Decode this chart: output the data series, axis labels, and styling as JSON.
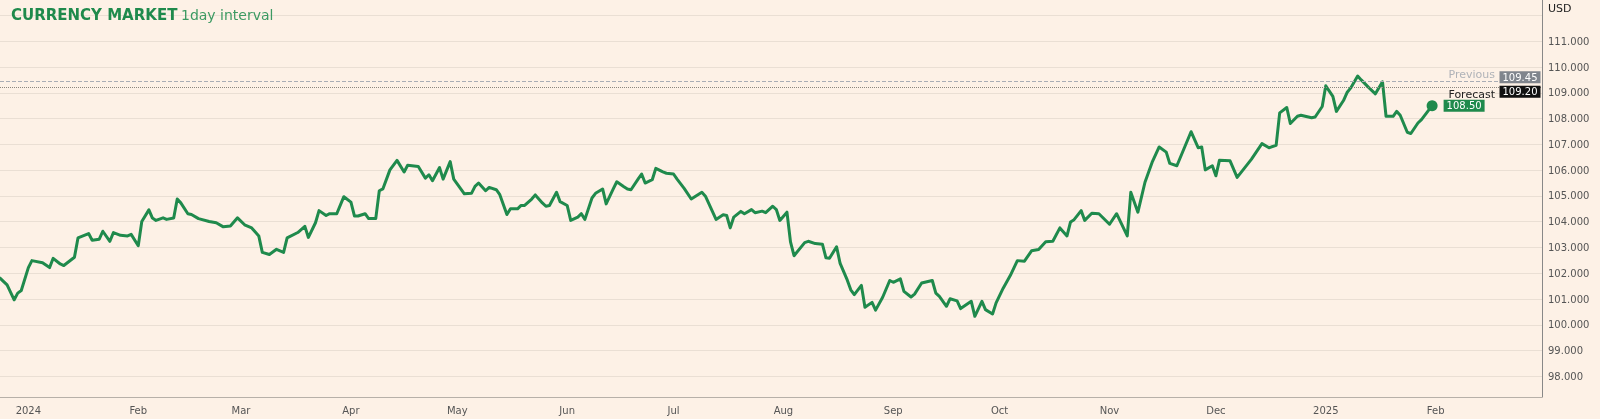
{
  "chart_data": {
    "type": "line",
    "title": "CURRENCY MARKET",
    "subtitle": "1day interval",
    "ylabel": "USD",
    "x": [
      "2023-12-24",
      "2023-12-26",
      "2023-12-28",
      "2023-12-29",
      "2023-12-30",
      "2024-01-01",
      "2024-01-02",
      "2024-01-05",
      "2024-01-07",
      "2024-01-08",
      "2024-01-10",
      "2024-01-11",
      "2024-01-14",
      "2024-01-15",
      "2024-01-18",
      "2024-01-19",
      "2024-01-21",
      "2024-01-22",
      "2024-01-24",
      "2024-01-25",
      "2024-01-27",
      "2024-01-29",
      "2024-01-30",
      "2024-02-01",
      "2024-02-02",
      "2024-02-04",
      "2024-02-05",
      "2024-02-06",
      "2024-02-08",
      "2024-02-09",
      "2024-02-11",
      "2024-02-12",
      "2024-02-13",
      "2024-02-15",
      "2024-02-16",
      "2024-02-18",
      "2024-02-21",
      "2024-02-23",
      "2024-02-25",
      "2024-02-27",
      "2024-02-29",
      "2024-03-02",
      "2024-03-04",
      "2024-03-06",
      "2024-03-07",
      "2024-03-09",
      "2024-03-11",
      "2024-03-13",
      "2024-03-14",
      "2024-03-17",
      "2024-03-19",
      "2024-03-20",
      "2024-03-22",
      "2024-03-23",
      "2024-03-25",
      "2024-03-26",
      "2024-03-28",
      "2024-03-30",
      "2024-04-01",
      "2024-04-02",
      "2024-04-03",
      "2024-04-05",
      "2024-04-06",
      "2024-04-08",
      "2024-04-09",
      "2024-04-10",
      "2024-04-12",
      "2024-04-14",
      "2024-04-16",
      "2024-04-17",
      "2024-04-20",
      "2024-04-22",
      "2024-04-23",
      "2024-04-24",
      "2024-04-26",
      "2024-04-27",
      "2024-04-29",
      "2024-04-30",
      "2024-05-03",
      "2024-05-05",
      "2024-05-06",
      "2024-05-07",
      "2024-05-09",
      "2024-05-10",
      "2024-05-12",
      "2024-05-13",
      "2024-05-15",
      "2024-05-16",
      "2024-05-18",
      "2024-05-19",
      "2024-05-20",
      "2024-05-22",
      "2024-05-23",
      "2024-05-25",
      "2024-05-26",
      "2024-05-27",
      "2024-05-29",
      "2024-05-30",
      "2024-06-01",
      "2024-06-02",
      "2024-06-04",
      "2024-06-05",
      "2024-06-06",
      "2024-06-08",
      "2024-06-09",
      "2024-06-11",
      "2024-06-12",
      "2024-06-14",
      "2024-06-15",
      "2024-06-17",
      "2024-06-18",
      "2024-06-19",
      "2024-06-21",
      "2024-06-22",
      "2024-06-23",
      "2024-06-25",
      "2024-06-26",
      "2024-06-28",
      "2024-06-29",
      "2024-07-01",
      "2024-07-02",
      "2024-07-04",
      "2024-07-06",
      "2024-07-09",
      "2024-07-10",
      "2024-07-13",
      "2024-07-15",
      "2024-07-16",
      "2024-07-17",
      "2024-07-18",
      "2024-07-20",
      "2024-07-21",
      "2024-07-23",
      "2024-07-24",
      "2024-07-26",
      "2024-07-27",
      "2024-07-29",
      "2024-07-30",
      "2024-07-31",
      "2024-08-02",
      "2024-08-03",
      "2024-08-04",
      "2024-08-07",
      "2024-08-08",
      "2024-08-10",
      "2024-08-12",
      "2024-08-13",
      "2024-08-14",
      "2024-08-16",
      "2024-08-17",
      "2024-08-19",
      "2024-08-20",
      "2024-08-21",
      "2024-08-23",
      "2024-08-24",
      "2024-08-26",
      "2024-08-27",
      "2024-08-29",
      "2024-08-31",
      "2024-09-01",
      "2024-09-03",
      "2024-09-04",
      "2024-09-06",
      "2024-09-07",
      "2024-09-09",
      "2024-09-12",
      "2024-09-13",
      "2024-09-14",
      "2024-09-16",
      "2024-09-17",
      "2024-09-19",
      "2024-09-20",
      "2024-09-23",
      "2024-09-24",
      "2024-09-26",
      "2024-09-27",
      "2024-09-29",
      "2024-09-30",
      "2024-10-02",
      "2024-10-04",
      "2024-10-06",
      "2024-10-08",
      "2024-10-10",
      "2024-10-12",
      "2024-10-14",
      "2024-10-16",
      "2024-10-18",
      "2024-10-20",
      "2024-10-21",
      "2024-10-22",
      "2024-10-24",
      "2024-10-25",
      "2024-10-27",
      "2024-10-29",
      "2024-11-01",
      "2024-11-03",
      "2024-11-06",
      "2024-11-07",
      "2024-11-09",
      "2024-11-11",
      "2024-11-13",
      "2024-11-15",
      "2024-11-17",
      "2024-11-18",
      "2024-11-20",
      "2024-11-24",
      "2024-11-26",
      "2024-11-27",
      "2024-11-28",
      "2024-11-30",
      "2024-12-01",
      "2024-12-02",
      "2024-12-05",
      "2024-12-07",
      "2024-12-11",
      "2024-12-14",
      "2024-12-16",
      "2024-12-18",
      "2024-12-19",
      "2024-12-21",
      "2024-12-22",
      "2024-12-24",
      "2024-12-25",
      "2024-12-28",
      "2024-12-29",
      "2024-12-31",
      "2025-01-01",
      "2025-01-03",
      "2025-01-04",
      "2025-01-06",
      "2025-01-07",
      "2025-01-08",
      "2025-01-10",
      "2025-01-11",
      "2025-01-13",
      "2025-01-15",
      "2025-01-17",
      "2025-01-18",
      "2025-01-20",
      "2025-01-21",
      "2025-01-22",
      "2025-01-24",
      "2025-01-25",
      "2025-01-27",
      "2025-01-28",
      "2025-01-31"
    ],
    "series": [
      {
        "color": "#1f8a4c",
        "values": [
          101.81,
          101.55,
          100.97,
          101.23,
          101.33,
          102.22,
          102.49,
          102.41,
          102.22,
          102.58,
          102.36,
          102.3,
          102.62,
          103.37,
          103.54,
          103.28,
          103.32,
          103.63,
          103.24,
          103.58,
          103.47,
          103.45,
          103.51,
          103.07,
          104.01,
          104.46,
          104.14,
          104.05,
          104.15,
          104.09,
          104.14,
          104.88,
          104.73,
          104.31,
          104.28,
          104.12,
          104.01,
          103.96,
          103.8,
          103.83,
          104.15,
          103.88,
          103.76,
          103.45,
          102.81,
          102.73,
          102.93,
          102.81,
          103.37,
          103.58,
          103.82,
          103.39,
          103.96,
          104.43,
          104.24,
          104.31,
          104.31,
          104.97,
          104.76,
          104.22,
          104.22,
          104.31,
          104.12,
          104.12,
          105.2,
          105.27,
          106.01,
          106.38,
          105.93,
          106.19,
          106.14,
          105.69,
          105.82,
          105.59,
          106.1,
          105.65,
          106.33,
          105.65,
          105.08,
          105.1,
          105.37,
          105.5,
          105.2,
          105.33,
          105.24,
          105.05,
          104.28,
          104.5,
          104.5,
          104.63,
          104.63,
          104.88,
          105.04,
          104.73,
          104.6,
          104.63,
          105.14,
          104.78,
          104.63,
          104.05,
          104.18,
          104.31,
          104.09,
          104.92,
          105.1,
          105.27,
          104.69,
          105.27,
          105.55,
          105.36,
          105.27,
          105.24,
          105.65,
          105.85,
          105.5,
          105.63,
          106.07,
          105.93,
          105.88,
          105.85,
          105.65,
          105.29,
          104.88,
          105.14,
          104.99,
          104.09,
          104.27,
          104.24,
          103.76,
          104.18,
          104.4,
          104.31,
          104.47,
          104.35,
          104.41,
          104.35,
          104.6,
          104.47,
          104.05,
          104.37,
          103.22,
          102.68,
          103.19,
          103.24,
          103.15,
          103.13,
          102.6,
          102.58,
          103.03,
          102.38,
          101.74,
          101.36,
          101.17,
          101.53,
          100.68,
          100.87,
          100.57,
          101.07,
          101.72,
          101.65,
          101.78,
          101.3,
          101.08,
          101.19,
          101.62,
          101.72,
          101.23,
          101.1,
          100.72,
          101.01,
          100.93,
          100.63,
          100.91,
          100.33,
          100.91,
          100.59,
          100.42,
          100.85,
          101.42,
          101.91,
          102.49,
          102.47,
          102.87,
          102.92,
          103.22,
          103.24,
          103.76,
          103.45,
          103.99,
          104.08,
          104.43,
          104.05,
          104.33,
          104.31,
          103.9,
          104.31,
          103.45,
          105.14,
          104.37,
          105.53,
          106.3,
          106.9,
          106.7,
          106.26,
          106.17,
          107.49,
          106.87,
          106.9,
          106.01,
          106.17,
          105.78,
          106.38,
          106.36,
          105.72,
          106.42,
          107.03,
          106.87,
          106.96,
          108.22,
          108.43,
          107.81,
          108.09,
          108.13,
          108.03,
          108.06,
          108.47,
          109.27,
          108.86,
          108.28,
          108.7,
          109.01,
          109.18,
          109.65,
          109.5,
          109.22,
          108.96,
          109.43,
          108.09,
          108.09,
          108.28,
          108.13,
          107.47,
          107.42,
          107.83,
          107.96,
          108.5
        ]
      }
    ],
    "xlim": [
      "2023-12-24",
      "2025-03-03"
    ],
    "xticks": [
      {
        "value": "2024-01-01",
        "label": "2024"
      },
      {
        "value": "2024-02-01",
        "label": "Feb"
      },
      {
        "value": "2024-03-01",
        "label": "Mar"
      },
      {
        "value": "2024-04-01",
        "label": "Apr"
      },
      {
        "value": "2024-05-01",
        "label": "May"
      },
      {
        "value": "2024-06-01",
        "label": "Jun"
      },
      {
        "value": "2024-07-01",
        "label": "Jul"
      },
      {
        "value": "2024-08-01",
        "label": "Aug"
      },
      {
        "value": "2024-09-01",
        "label": "Sep"
      },
      {
        "value": "2024-10-01",
        "label": "Oct"
      },
      {
        "value": "2024-11-01",
        "label": "Nov"
      },
      {
        "value": "2024-12-01",
        "label": "Dec"
      },
      {
        "value": "2025-01-01",
        "label": "2025"
      },
      {
        "value": "2025-02-01",
        "label": "Feb"
      }
    ],
    "ylim": [
      97.2,
      112.6
    ],
    "yticks": [
      {
        "value": 98,
        "label": "98.000"
      },
      {
        "value": 99,
        "label": "99.000"
      },
      {
        "value": 100,
        "label": "100.000"
      },
      {
        "value": 101,
        "label": "101.000"
      },
      {
        "value": 102,
        "label": "102.000"
      },
      {
        "value": 103,
        "label": "103.000"
      },
      {
        "value": 104,
        "label": "104.000"
      },
      {
        "value": 105,
        "label": "105.000"
      },
      {
        "value": 106,
        "label": "106.000"
      },
      {
        "value": 107,
        "label": "107.000"
      },
      {
        "value": 108,
        "label": "108.000"
      },
      {
        "value": 109,
        "label": "109.000"
      },
      {
        "value": 110,
        "label": "110.000"
      },
      {
        "value": 111,
        "label": "111.000"
      },
      {
        "value": 112,
        "label": null
      }
    ],
    "ref_lines": [
      {
        "axis": "y",
        "value": 109.45,
        "label": "Previous",
        "color": "#a9adb5",
        "line_style": "dashed"
      },
      {
        "axis": "y",
        "value": 109.2,
        "label": "Forecast",
        "color": "#8c867e",
        "line_style": "dotted"
      }
    ],
    "annotations": [
      {
        "text": "108.50",
        "x": "2025-01-31",
        "y": 108.5
      },
      {
        "text": "109.45",
        "x": "2025-03-03",
        "y": 109.45
      },
      {
        "text": "109.20",
        "x": "2025-03-03",
        "y": 109.2
      }
    ],
    "grid": "y",
    "marker": "none",
    "line_style": "solid"
  }
}
